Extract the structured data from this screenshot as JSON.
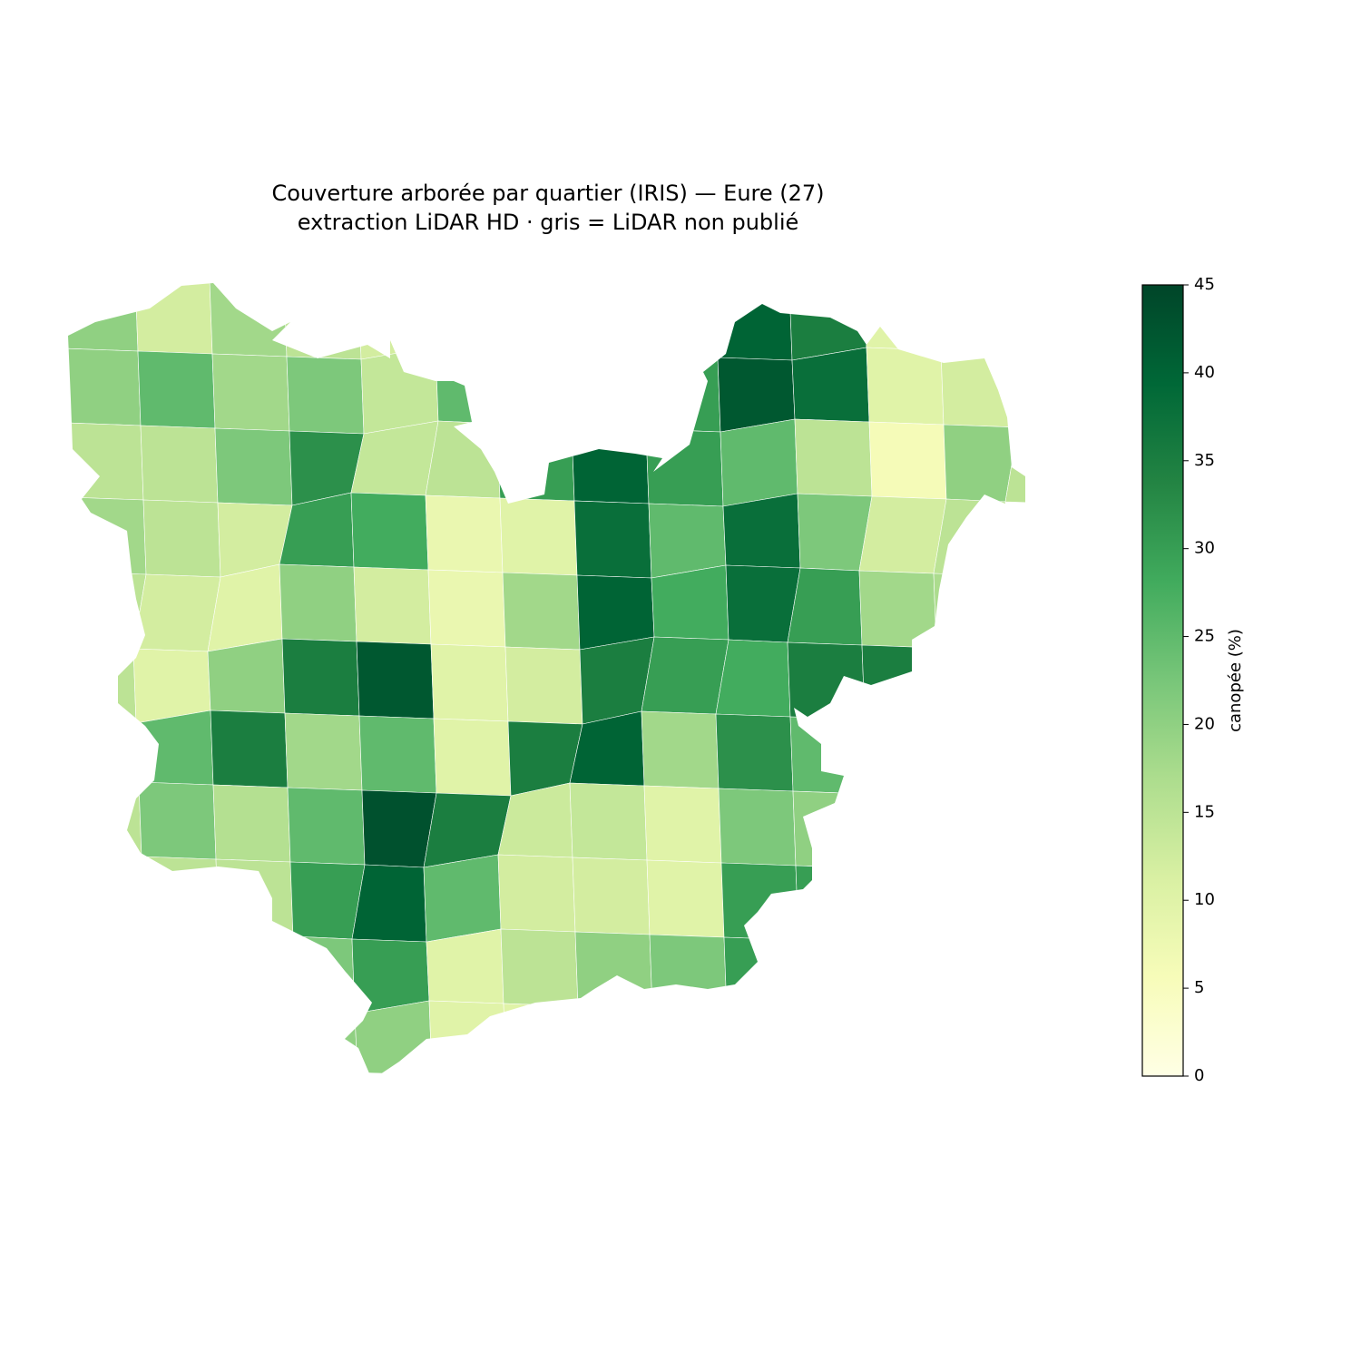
{
  "chart_data": {
    "type": "choropleth",
    "title": "Couverture arborée par quartier (IRIS) — Eure (27)",
    "subtitle": "extraction LiDAR HD · gris = LiDAR non publié",
    "colorbar_label": "canopée (%)",
    "colormap": "YlGn",
    "clim": [
      0,
      45
    ],
    "cticks": [
      0,
      5,
      10,
      15,
      20,
      25,
      30,
      35,
      40,
      45
    ],
    "cells": [
      [
        20,
        12,
        18,
        15,
        12,
        null,
        null,
        null,
        null,
        40,
        35,
        10,
        8,
        null
      ],
      [
        20,
        25,
        18,
        22,
        14,
        25,
        null,
        null,
        30,
        42,
        38,
        10,
        12,
        null
      ],
      [
        15,
        15,
        22,
        32,
        14,
        15,
        30,
        40,
        30,
        25,
        15,
        6,
        20,
        15
      ],
      [
        18,
        15,
        12,
        30,
        28,
        8,
        10,
        38,
        25,
        38,
        22,
        12,
        15,
        null
      ],
      [
        15,
        12,
        10,
        20,
        12,
        8,
        18,
        40,
        28,
        38,
        30,
        18,
        17,
        null
      ],
      [
        15,
        10,
        20,
        35,
        42,
        10,
        12,
        35,
        30,
        28,
        35,
        35,
        null,
        null
      ],
      [
        15,
        25,
        35,
        18,
        25,
        10,
        35,
        40,
        18,
        32,
        25,
        null,
        null,
        null
      ],
      [
        15,
        22,
        16,
        25,
        43,
        35,
        13,
        14,
        10,
        22,
        20,
        null,
        null,
        null
      ],
      [
        null,
        15,
        15,
        30,
        40,
        25,
        12,
        12,
        10,
        30,
        30,
        null,
        null,
        null
      ],
      [
        null,
        null,
        null,
        22,
        30,
        10,
        15,
        20,
        22,
        30,
        null,
        null,
        null,
        null
      ],
      [
        null,
        null,
        null,
        20,
        20,
        10,
        10,
        null,
        null,
        null,
        null,
        null,
        null,
        null
      ]
    ]
  }
}
